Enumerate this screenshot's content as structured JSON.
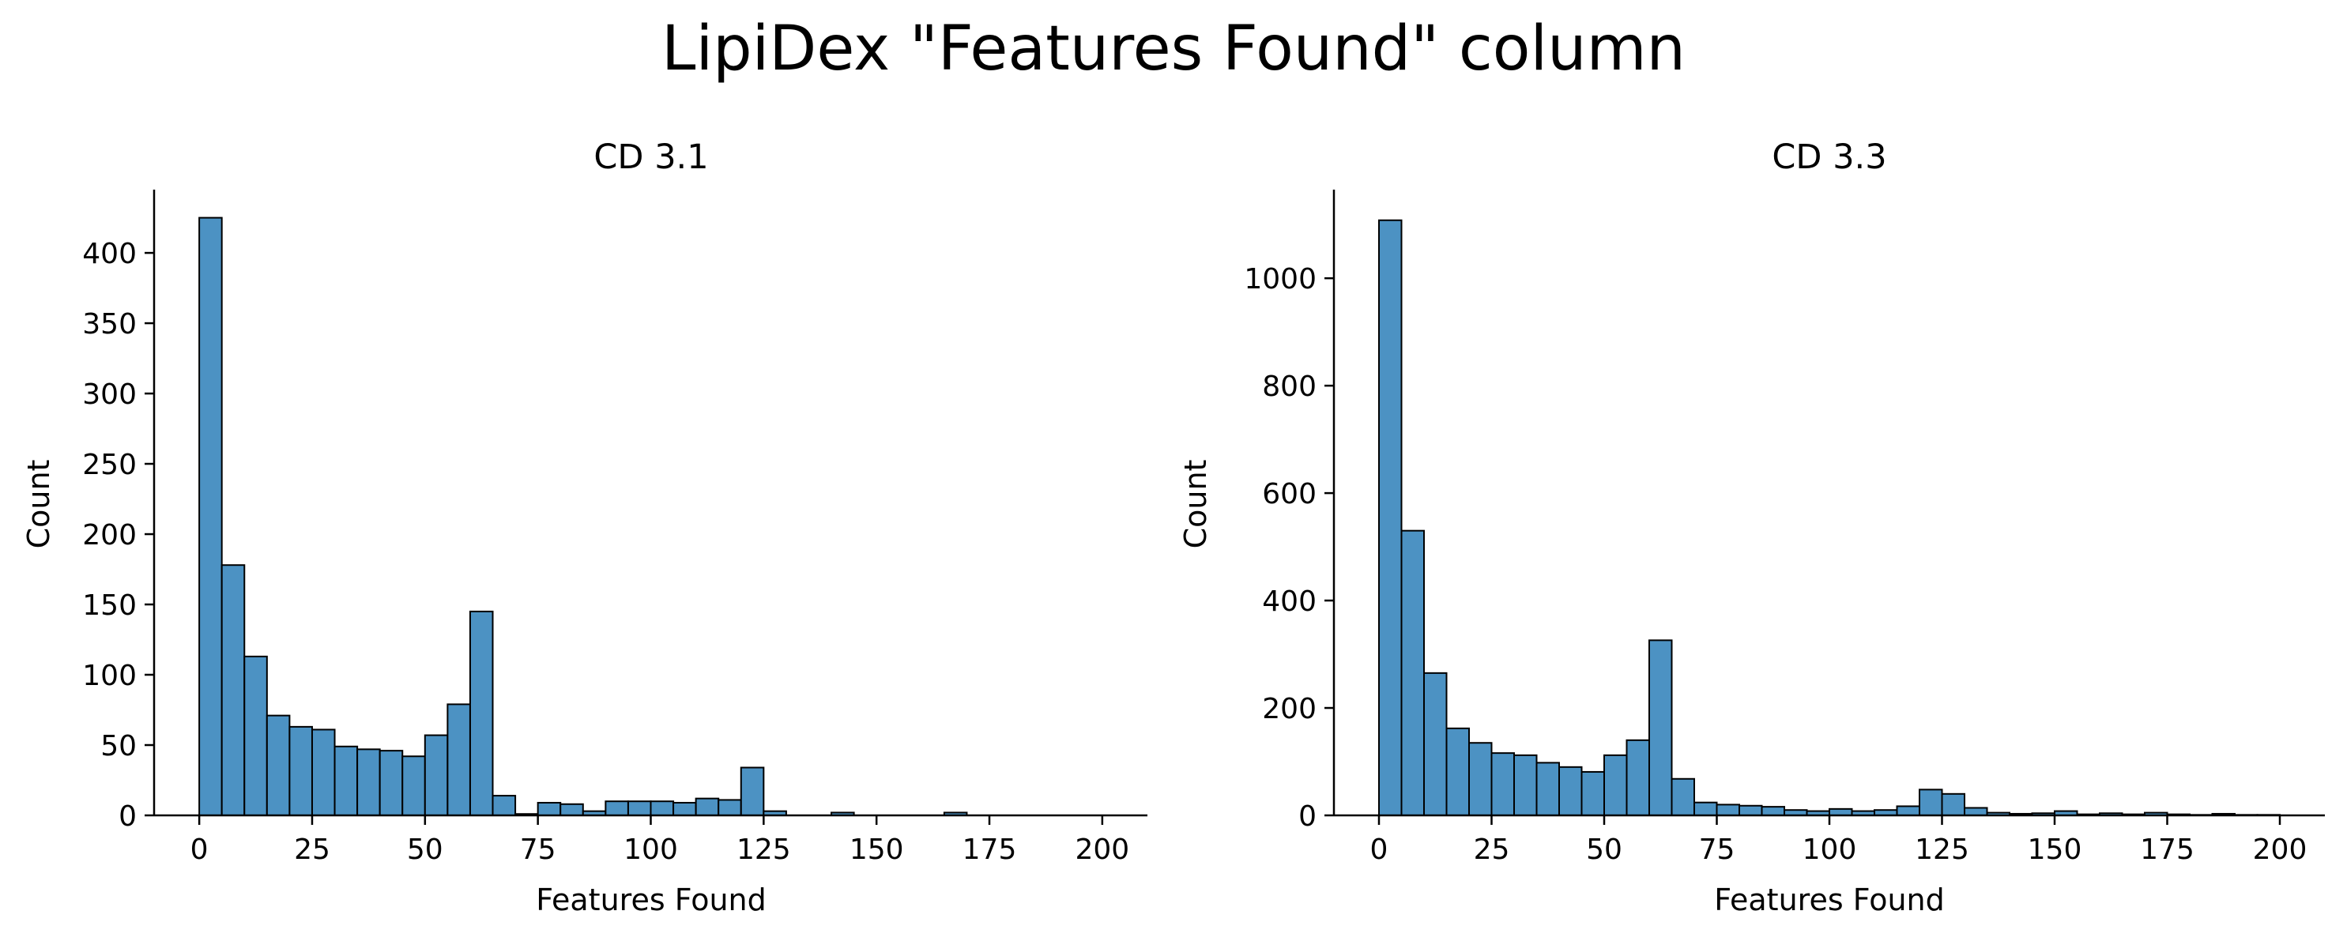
{
  "figure": {
    "title": "LipiDex \"Features Found\" column",
    "bar_color": "#4c92c3",
    "edge_color": "#000000"
  },
  "chart_data": [
    {
      "type": "bar",
      "subtype": "histogram",
      "title": "CD 3.1",
      "xlabel": "Features Found",
      "ylabel": "Count",
      "xlim": [
        -10,
        210
      ],
      "ylim": [
        0,
        445
      ],
      "xticks": [
        0,
        25,
        50,
        75,
        100,
        125,
        150,
        175,
        200
      ],
      "yticks": [
        0,
        50,
        100,
        150,
        200,
        250,
        300,
        350,
        400
      ],
      "bin_start": 0,
      "bin_width": 5,
      "values": [
        425,
        178,
        113,
        71,
        63,
        61,
        49,
        47,
        46,
        42,
        57,
        79,
        145,
        14,
        1,
        9,
        8,
        3,
        10,
        10,
        10,
        9,
        12,
        11,
        34,
        3,
        0,
        0,
        2,
        0,
        0,
        0,
        0,
        2,
        0,
        0,
        0,
        0,
        0,
        0
      ]
    },
    {
      "type": "bar",
      "subtype": "histogram",
      "title": "CD 3.3",
      "xlabel": "Features Found",
      "ylabel": "Count",
      "xlim": [
        -10,
        210
      ],
      "ylim": [
        0,
        1165
      ],
      "xticks": [
        0,
        25,
        50,
        75,
        100,
        125,
        150,
        175,
        200
      ],
      "yticks": [
        0,
        200,
        400,
        600,
        800,
        1000
      ],
      "bin_start": 0,
      "bin_width": 5,
      "values": [
        1108,
        530,
        265,
        162,
        135,
        116,
        112,
        98,
        90,
        81,
        112,
        140,
        326,
        68,
        24,
        20,
        18,
        16,
        10,
        8,
        12,
        8,
        10,
        17,
        48,
        40,
        14,
        5,
        3,
        4,
        8,
        2,
        4,
        2,
        5,
        2,
        1,
        3,
        1,
        1
      ]
    }
  ]
}
